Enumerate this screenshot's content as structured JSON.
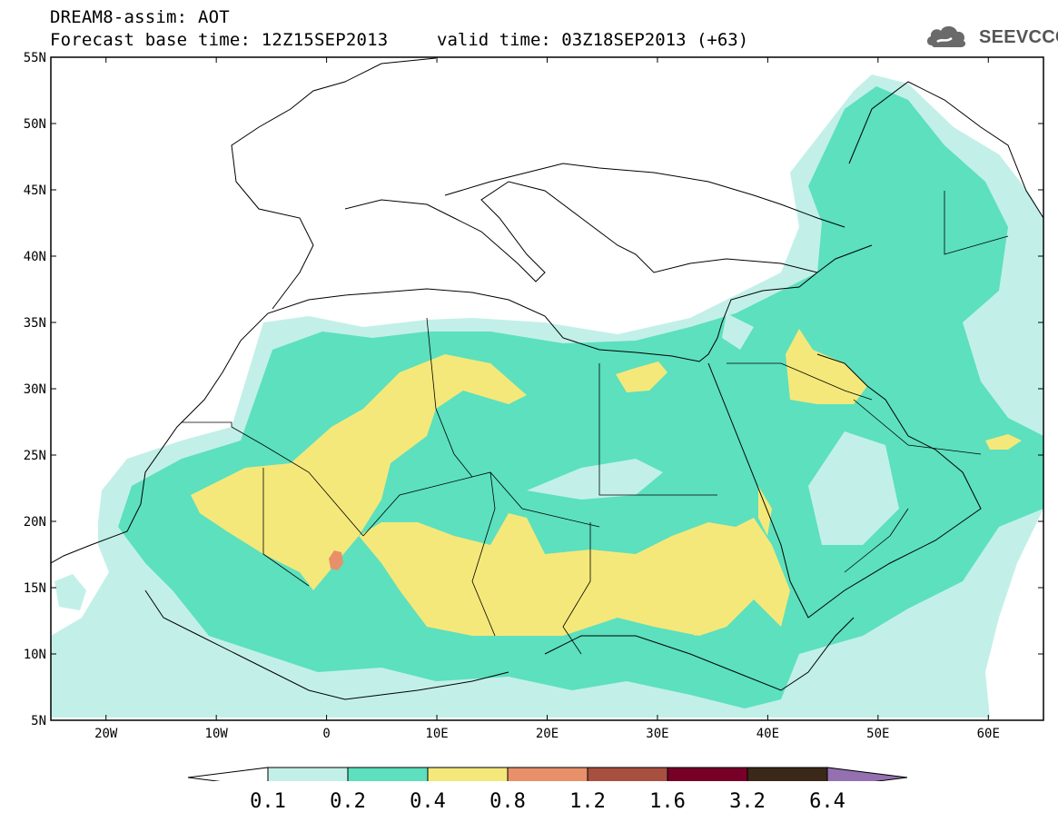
{
  "header": {
    "title": "DREAM8-assim: AOT",
    "base_time": "Forecast base time: 12Z15SEP2013",
    "valid_time": "valid time: 03Z18SEP2013 (+63)",
    "logo_text": "SEEVCCC",
    "logo_icon": "cloud-icon"
  },
  "map": {
    "lon_range": [
      -25,
      65
    ],
    "lat_range": [
      5,
      55
    ],
    "lon_ticks": [
      "20W",
      "10W",
      "0",
      "10E",
      "20E",
      "30E",
      "40E",
      "50E",
      "60E"
    ],
    "lat_ticks": [
      "5N",
      "10N",
      "15N",
      "20N",
      "25N",
      "30N",
      "35N",
      "40N",
      "45N",
      "50N",
      "55N"
    ]
  },
  "colorbar": {
    "labels": [
      "0.1",
      "0.2",
      "0.4",
      "0.8",
      "1.2",
      "1.6",
      "3.2",
      "6.4"
    ],
    "colors": [
      "#c2f0e8",
      "#5ce0be",
      "#f5e87a",
      "#e8906a",
      "#a85040",
      "#780028",
      "#3a2818",
      "#9470b0"
    ],
    "under_color": "#ffffff",
    "over_color": "#9470b0"
  },
  "colors": {
    "c1": "#c2f0e8",
    "c2": "#5ce0be",
    "c3": "#f5e87a",
    "c4": "#e8906a"
  }
}
